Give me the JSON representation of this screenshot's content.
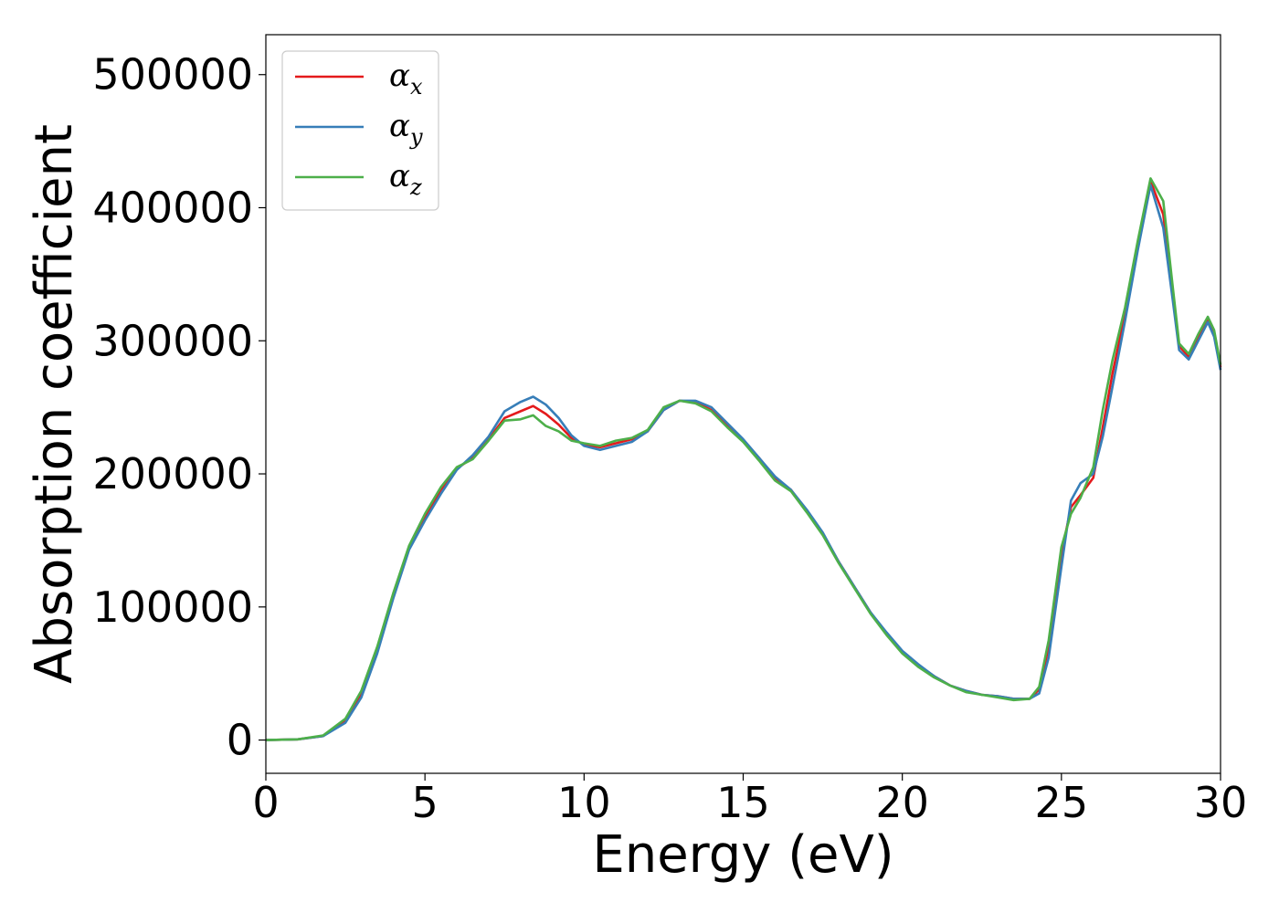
{
  "chart_data": {
    "type": "line",
    "title": "",
    "xlabel": "Energy (eV)",
    "ylabel": "Absorption coefficient",
    "xlim": [
      0,
      30
    ],
    "ylim": [
      -25000,
      530000
    ],
    "xticks": [
      0,
      5,
      10,
      15,
      20,
      25,
      30
    ],
    "yticks": [
      0,
      100000,
      200000,
      300000,
      400000,
      500000
    ],
    "xtick_labels": [
      "0",
      "5",
      "10",
      "15",
      "20",
      "25",
      "30"
    ],
    "ytick_labels": [
      "0",
      "100000",
      "200000",
      "300000",
      "400000",
      "500000"
    ],
    "grid": false,
    "legend_position": "top-left",
    "series": [
      {
        "name": "αx",
        "name_base": "α",
        "name_sub": "x",
        "color": "#e41a1c",
        "points": [
          [
            0,
            0
          ],
          [
            1,
            500
          ],
          [
            1.8,
            3000
          ],
          [
            2.5,
            15000
          ],
          [
            3,
            35000
          ],
          [
            3.5,
            68000
          ],
          [
            4,
            108000
          ],
          [
            4.5,
            145000
          ],
          [
            5,
            168000
          ],
          [
            5.5,
            188000
          ],
          [
            6,
            204000
          ],
          [
            6.5,
            212000
          ],
          [
            7,
            226000
          ],
          [
            7.5,
            242000
          ],
          [
            8,
            247000
          ],
          [
            8.4,
            251000
          ],
          [
            8.8,
            245000
          ],
          [
            9.2,
            237000
          ],
          [
            9.6,
            227000
          ],
          [
            10,
            222000
          ],
          [
            10.5,
            220000
          ],
          [
            11,
            223000
          ],
          [
            11.5,
            226000
          ],
          [
            12,
            232000
          ],
          [
            12.5,
            248000
          ],
          [
            13,
            255000
          ],
          [
            13.5,
            254000
          ],
          [
            14,
            248000
          ],
          [
            14.5,
            237000
          ],
          [
            15,
            225000
          ],
          [
            15.5,
            212000
          ],
          [
            16,
            197000
          ],
          [
            16.5,
            188000
          ],
          [
            17,
            172000
          ],
          [
            17.5,
            155000
          ],
          [
            18,
            134000
          ],
          [
            18.5,
            115000
          ],
          [
            19,
            96000
          ],
          [
            19.5,
            80000
          ],
          [
            20,
            66000
          ],
          [
            20.5,
            56000
          ],
          [
            21,
            48000
          ],
          [
            21.5,
            41000
          ],
          [
            22,
            37000
          ],
          [
            22.5,
            34000
          ],
          [
            23,
            33000
          ],
          [
            23.5,
            31000
          ],
          [
            24,
            31000
          ],
          [
            24.3,
            38000
          ],
          [
            24.6,
            70000
          ],
          [
            25,
            140000
          ],
          [
            25.3,
            175000
          ],
          [
            25.6,
            184000
          ],
          [
            26,
            197000
          ],
          [
            26.3,
            235000
          ],
          [
            26.6,
            275000
          ],
          [
            27,
            320000
          ],
          [
            27.4,
            370000
          ],
          [
            27.8,
            420000
          ],
          [
            28.2,
            395000
          ],
          [
            28.5,
            335000
          ],
          [
            28.7,
            296000
          ],
          [
            29,
            288000
          ],
          [
            29.3,
            303000
          ],
          [
            29.6,
            316000
          ],
          [
            29.8,
            305000
          ],
          [
            30,
            280000
          ]
        ]
      },
      {
        "name": "αy",
        "name_base": "α",
        "name_sub": "y",
        "color": "#377eb8",
        "points": [
          [
            0,
            0
          ],
          [
            1,
            500
          ],
          [
            1.8,
            3000
          ],
          [
            2.5,
            13000
          ],
          [
            3,
            32000
          ],
          [
            3.5,
            65000
          ],
          [
            4,
            106000
          ],
          [
            4.5,
            143000
          ],
          [
            5,
            165000
          ],
          [
            5.5,
            185000
          ],
          [
            6,
            203000
          ],
          [
            6.5,
            214000
          ],
          [
            7,
            228000
          ],
          [
            7.5,
            247000
          ],
          [
            8,
            254000
          ],
          [
            8.4,
            258000
          ],
          [
            8.8,
            252000
          ],
          [
            9.2,
            242000
          ],
          [
            9.6,
            229000
          ],
          [
            10,
            221000
          ],
          [
            10.5,
            218000
          ],
          [
            11,
            221000
          ],
          [
            11.5,
            224000
          ],
          [
            12,
            232000
          ],
          [
            12.5,
            248000
          ],
          [
            13,
            255000
          ],
          [
            13.5,
            255000
          ],
          [
            14,
            250000
          ],
          [
            14.5,
            238000
          ],
          [
            15,
            226000
          ],
          [
            15.5,
            212000
          ],
          [
            16,
            198000
          ],
          [
            16.5,
            188000
          ],
          [
            17,
            173000
          ],
          [
            17.5,
            156000
          ],
          [
            18,
            134000
          ],
          [
            18.5,
            115000
          ],
          [
            19,
            96000
          ],
          [
            19.5,
            81000
          ],
          [
            20,
            67000
          ],
          [
            20.5,
            57000
          ],
          [
            21,
            48000
          ],
          [
            21.5,
            41000
          ],
          [
            22,
            37000
          ],
          [
            22.5,
            34000
          ],
          [
            23,
            33000
          ],
          [
            23.5,
            31000
          ],
          [
            24,
            31000
          ],
          [
            24.3,
            35000
          ],
          [
            24.6,
            62000
          ],
          [
            25,
            130000
          ],
          [
            25.3,
            180000
          ],
          [
            25.6,
            193000
          ],
          [
            26,
            200000
          ],
          [
            26.3,
            228000
          ],
          [
            26.6,
            265000
          ],
          [
            27,
            315000
          ],
          [
            27.4,
            368000
          ],
          [
            27.8,
            417000
          ],
          [
            28.2,
            385000
          ],
          [
            28.5,
            330000
          ],
          [
            28.7,
            293000
          ],
          [
            29,
            286000
          ],
          [
            29.3,
            300000
          ],
          [
            29.6,
            314000
          ],
          [
            29.8,
            303000
          ],
          [
            30,
            278000
          ]
        ]
      },
      {
        "name": "αz",
        "name_base": "α",
        "name_sub": "z",
        "color": "#4daf4a",
        "points": [
          [
            0,
            0
          ],
          [
            1,
            500
          ],
          [
            1.8,
            3500
          ],
          [
            2.5,
            16000
          ],
          [
            3,
            37000
          ],
          [
            3.5,
            70000
          ],
          [
            4,
            110000
          ],
          [
            4.5,
            146000
          ],
          [
            5,
            170000
          ],
          [
            5.5,
            190000
          ],
          [
            6,
            205000
          ],
          [
            6.5,
            211000
          ],
          [
            7,
            225000
          ],
          [
            7.5,
            240000
          ],
          [
            8,
            241000
          ],
          [
            8.4,
            244000
          ],
          [
            8.8,
            236000
          ],
          [
            9.2,
            232000
          ],
          [
            9.6,
            225000
          ],
          [
            10,
            223000
          ],
          [
            10.5,
            221000
          ],
          [
            11,
            225000
          ],
          [
            11.5,
            227000
          ],
          [
            12,
            233000
          ],
          [
            12.5,
            250000
          ],
          [
            13,
            255000
          ],
          [
            13.5,
            253000
          ],
          [
            14,
            247000
          ],
          [
            14.5,
            235000
          ],
          [
            15,
            224000
          ],
          [
            15.5,
            210000
          ],
          [
            16,
            195000
          ],
          [
            16.5,
            187000
          ],
          [
            17,
            171000
          ],
          [
            17.5,
            154000
          ],
          [
            18,
            133000
          ],
          [
            18.5,
            114000
          ],
          [
            19,
            95000
          ],
          [
            19.5,
            79000
          ],
          [
            20,
            65000
          ],
          [
            20.5,
            55000
          ],
          [
            21,
            47000
          ],
          [
            21.5,
            41000
          ],
          [
            22,
            36000
          ],
          [
            22.5,
            34000
          ],
          [
            23,
            32000
          ],
          [
            23.5,
            30000
          ],
          [
            24,
            31000
          ],
          [
            24.3,
            40000
          ],
          [
            24.6,
            75000
          ],
          [
            25,
            145000
          ],
          [
            25.3,
            170000
          ],
          [
            25.6,
            182000
          ],
          [
            26,
            205000
          ],
          [
            26.3,
            248000
          ],
          [
            26.6,
            285000
          ],
          [
            27,
            325000
          ],
          [
            27.4,
            375000
          ],
          [
            27.8,
            422000
          ],
          [
            28.2,
            405000
          ],
          [
            28.5,
            340000
          ],
          [
            28.7,
            298000
          ],
          [
            29,
            290000
          ],
          [
            29.3,
            305000
          ],
          [
            29.6,
            318000
          ],
          [
            29.8,
            308000
          ],
          [
            30,
            282000
          ]
        ]
      }
    ]
  }
}
